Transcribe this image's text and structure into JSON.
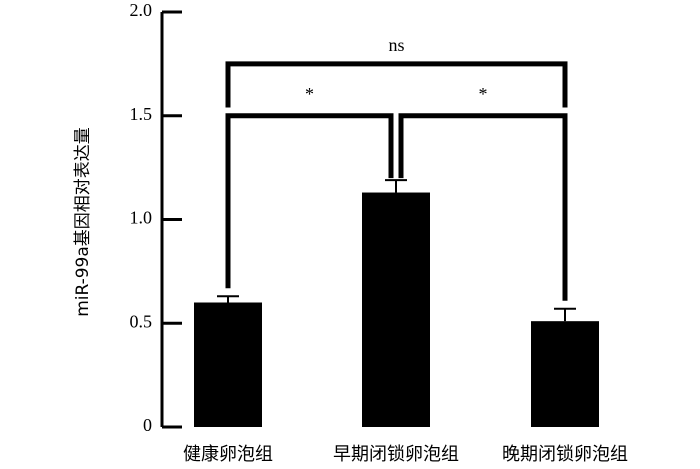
{
  "chart_data": {
    "type": "bar",
    "categories": [
      "健康卵泡组",
      "早期闭锁卵泡组",
      "晚期闭锁卵泡组"
    ],
    "values": [
      0.6,
      1.13,
      0.51
    ],
    "errors": [
      0.03,
      0.06,
      0.06
    ],
    "ylabel": "miR-99a基因相对表达量",
    "xlabel": "",
    "ylim": [
      0,
      2.0
    ],
    "yticks": [
      "0",
      "0.5",
      "1.0",
      "1.5",
      "2.0"
    ],
    "bar_color": "#000000",
    "significance": [
      {
        "from": 0,
        "to": 1,
        "label": "*",
        "at": 1.5
      },
      {
        "from": 1,
        "to": 2,
        "label": "*",
        "at": 1.5
      },
      {
        "from": 0,
        "to": 2,
        "label": "ns",
        "at": 1.75
      }
    ]
  }
}
